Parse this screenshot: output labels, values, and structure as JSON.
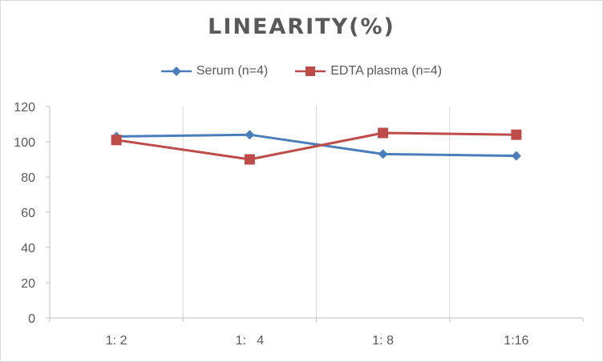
{
  "chart_data": {
    "type": "line",
    "title": "LINEARITY(%)",
    "xlabel": "",
    "ylabel": "",
    "categories": [
      "1: 2",
      "1:   4",
      "1: 8",
      "1:16"
    ],
    "ylim": [
      0,
      120
    ],
    "yticks": [
      0,
      20,
      40,
      60,
      80,
      100,
      120
    ],
    "grid": "vertical",
    "legend_position": "top",
    "series": [
      {
        "name": "Serum (n=4)",
        "values": [
          103,
          104,
          93,
          92
        ],
        "color": "#4a7ebb",
        "marker": "diamond"
      },
      {
        "name": "EDTA plasma (n=4)",
        "values": [
          101,
          90,
          105,
          104
        ],
        "color": "#be4b48",
        "marker": "square"
      }
    ]
  }
}
